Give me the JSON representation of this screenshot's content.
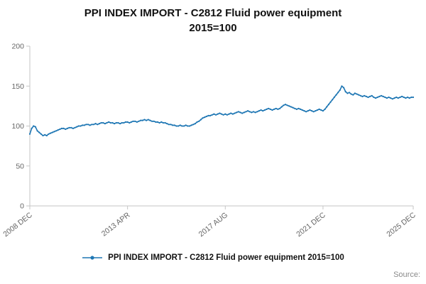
{
  "title": {
    "line1": "PPI INDEX IMPORT - C2812 Fluid power equipment",
    "line2": "2015=100"
  },
  "legend": {
    "label": "PPI INDEX IMPORT - C2812 Fluid power equipment 2015=100"
  },
  "source": {
    "label": "Source:"
  },
  "chart_data": {
    "type": "line",
    "title": "PPI INDEX IMPORT - C2812 Fluid power equipment 2015=100",
    "xlabel": "",
    "ylabel": "",
    "ylim": [
      0,
      200
    ],
    "y_ticks": [
      0,
      50,
      100,
      150,
      200
    ],
    "x_tick_labels": [
      "2008 DEC",
      "2013 APR",
      "2017 AUG",
      "2021 DEC",
      "2025 DEC"
    ],
    "x_tick_month_indices": [
      0,
      52,
      104,
      156,
      204
    ],
    "x_start": "2008 DEC",
    "x_end": "2025 DEC",
    "frequency": "monthly",
    "grid": false,
    "legend_position": "bottom",
    "line_color": "#1f77b4",
    "axis_color": "#c6c6c6",
    "tick_label_color": "#666666",
    "series": [
      {
        "name": "PPI INDEX IMPORT - C2812 Fluid power equipment 2015=100",
        "values": [
          90,
          97,
          100,
          99,
          94,
          92,
          90,
          88,
          89,
          88,
          90,
          91,
          92,
          93,
          94,
          95,
          96,
          97,
          97,
          96,
          97,
          98,
          98,
          97,
          98,
          99,
          100,
          100,
          101,
          101,
          102,
          102,
          101,
          102,
          102,
          103,
          102,
          103,
          104,
          104,
          103,
          104,
          105,
          104,
          104,
          103,
          104,
          104,
          103,
          104,
          104,
          105,
          105,
          104,
          105,
          106,
          106,
          105,
          106,
          107,
          107,
          108,
          107,
          108,
          107,
          106,
          106,
          105,
          105,
          104,
          105,
          104,
          104,
          103,
          102,
          102,
          101,
          101,
          100,
          100,
          101,
          100,
          100,
          101,
          100,
          100,
          101,
          102,
          103,
          105,
          106,
          108,
          110,
          111,
          112,
          113,
          113,
          114,
          115,
          114,
          115,
          116,
          115,
          114,
          115,
          114,
          115,
          116,
          115,
          116,
          117,
          118,
          117,
          116,
          117,
          118,
          119,
          118,
          117,
          118,
          117,
          118,
          119,
          120,
          119,
          120,
          121,
          122,
          121,
          120,
          121,
          122,
          121,
          122,
          124,
          126,
          127,
          126,
          125,
          124,
          123,
          122,
          121,
          122,
          121,
          120,
          119,
          118,
          119,
          120,
          119,
          118,
          119,
          120,
          121,
          120,
          119,
          121,
          124,
          127,
          130,
          133,
          136,
          139,
          142,
          145,
          150,
          148,
          143,
          141,
          142,
          140,
          139,
          141,
          140,
          139,
          138,
          137,
          138,
          137,
          136,
          137,
          138,
          136,
          135,
          136,
          137,
          138,
          137,
          136,
          135,
          136,
          135,
          134,
          135,
          136,
          135,
          136,
          137,
          136,
          135,
          136,
          135,
          136,
          136
        ]
      }
    ]
  }
}
